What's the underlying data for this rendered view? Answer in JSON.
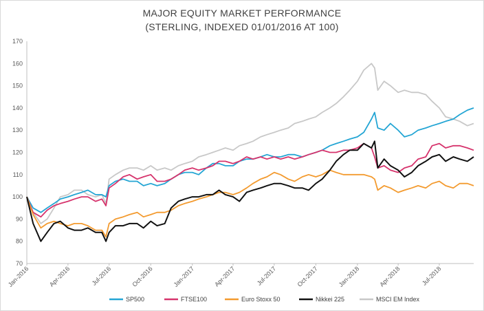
{
  "chart_data": {
    "type": "line",
    "title": "MAJOR EQUITY MARKET PERFORMANCE",
    "subtitle": "(STERLING, INDEXED 01/01/2016 AT 100)",
    "xlabel": "",
    "ylabel": "",
    "ylim": [
      70,
      170
    ],
    "yticks": [
      70,
      80,
      90,
      100,
      110,
      120,
      130,
      140,
      150,
      160,
      170
    ],
    "xlim": [
      "2016-01-01",
      "2018-09-15"
    ],
    "xticks": [
      "Jan-2016",
      "Apr-2016",
      "Jul-2016",
      "Oct-2016",
      "Jan-2017",
      "Apr-2017",
      "Jul-2017",
      "Oct-2017",
      "Jan-2018",
      "Apr-2018",
      "Jul-2018"
    ],
    "grid": false,
    "legend": "bottom",
    "x": [
      "2016-01-01",
      "2016-01-15",
      "2016-02-01",
      "2016-02-15",
      "2016-03-01",
      "2016-03-15",
      "2016-04-01",
      "2016-04-15",
      "2016-05-01",
      "2016-05-15",
      "2016-06-01",
      "2016-06-15",
      "2016-06-24",
      "2016-07-01",
      "2016-07-15",
      "2016-08-01",
      "2016-08-15",
      "2016-09-01",
      "2016-09-15",
      "2016-10-01",
      "2016-10-15",
      "2016-11-01",
      "2016-11-15",
      "2016-12-01",
      "2016-12-15",
      "2017-01-01",
      "2017-01-15",
      "2017-02-01",
      "2017-02-15",
      "2017-03-01",
      "2017-03-15",
      "2017-04-01",
      "2017-04-15",
      "2017-05-01",
      "2017-05-15",
      "2017-06-01",
      "2017-06-15",
      "2017-07-01",
      "2017-07-15",
      "2017-08-01",
      "2017-08-15",
      "2017-09-01",
      "2017-09-15",
      "2017-10-01",
      "2017-10-15",
      "2017-11-01",
      "2017-11-15",
      "2017-12-01",
      "2017-12-15",
      "2018-01-01",
      "2018-01-15",
      "2018-02-01",
      "2018-02-08",
      "2018-02-15",
      "2018-03-01",
      "2018-03-15",
      "2018-04-01",
      "2018-04-15",
      "2018-05-01",
      "2018-05-15",
      "2018-06-01",
      "2018-06-15",
      "2018-07-01",
      "2018-07-15",
      "2018-08-01",
      "2018-08-15",
      "2018-09-01",
      "2018-09-15"
    ],
    "series": [
      {
        "name": "SP500",
        "color": "#23a5d4",
        "values": [
          100,
          95,
          93,
          95,
          97,
          99,
          100,
          101,
          102,
          103,
          101,
          101,
          100,
          105,
          107,
          108,
          107,
          107,
          105,
          106,
          105,
          106,
          108,
          110,
          111,
          111,
          110,
          113,
          115,
          115,
          114,
          114,
          116,
          117,
          117,
          118,
          119,
          118,
          118,
          119,
          119,
          118,
          119,
          120,
          121,
          123,
          124,
          125,
          126,
          127,
          129,
          135,
          138,
          131,
          130,
          133,
          130,
          127,
          128,
          130,
          131,
          132,
          133,
          134,
          135,
          137,
          139,
          140
        ]
      },
      {
        "name": "FTSE100",
        "color": "#d6336c",
        "values": [
          100,
          93,
          91,
          94,
          96,
          97,
          98,
          99,
          100,
          100,
          98,
          99,
          96,
          104,
          106,
          109,
          110,
          108,
          109,
          110,
          107,
          107,
          108,
          110,
          112,
          113,
          112,
          113,
          114,
          116,
          116,
          115,
          116,
          118,
          117,
          118,
          117,
          118,
          117,
          118,
          117,
          118,
          119,
          120,
          121,
          120,
          120,
          121,
          121,
          122,
          124,
          122,
          118,
          113,
          114,
          112,
          111,
          113,
          114,
          117,
          118,
          123,
          124,
          122,
          123,
          123,
          122,
          121
        ]
      },
      {
        "name": "Euro Stoxx 50",
        "color": "#f39a2e",
        "values": [
          100,
          92,
          86,
          88,
          89,
          88,
          87,
          88,
          88,
          87,
          85,
          85,
          82,
          88,
          90,
          91,
          92,
          93,
          91,
          92,
          93,
          93,
          94,
          96,
          97,
          98,
          99,
          100,
          101,
          102,
          102,
          101,
          102,
          104,
          106,
          108,
          109,
          111,
          110,
          108,
          107,
          109,
          110,
          109,
          110,
          112,
          111,
          110,
          110,
          110,
          110,
          109,
          108,
          103,
          105,
          104,
          102,
          103,
          104,
          105,
          104,
          106,
          107,
          105,
          104,
          106,
          106,
          105
        ]
      },
      {
        "name": "Nikkei 225",
        "color": "#111111",
        "values": [
          100,
          88,
          80,
          84,
          88,
          89,
          86,
          85,
          85,
          86,
          84,
          84,
          80,
          84,
          87,
          87,
          88,
          88,
          86,
          89,
          87,
          88,
          95,
          98,
          99,
          100,
          100,
          101,
          101,
          103,
          101,
          100,
          98,
          102,
          103,
          104,
          105,
          106,
          106,
          105,
          104,
          104,
          103,
          106,
          108,
          112,
          116,
          119,
          121,
          121,
          124,
          122,
          125,
          113,
          117,
          114,
          112,
          109,
          111,
          114,
          116,
          118,
          119,
          116,
          118,
          117,
          116,
          118
        ]
      },
      {
        "name": "MSCI EM Index",
        "color": "#c8c8c8",
        "values": [
          100,
          93,
          88,
          90,
          95,
          100,
          101,
          103,
          103,
          101,
          100,
          101,
          97,
          108,
          110,
          112,
          113,
          113,
          112,
          114,
          112,
          113,
          112,
          114,
          115,
          116,
          118,
          119,
          120,
          121,
          122,
          121,
          123,
          124,
          125,
          127,
          128,
          129,
          130,
          131,
          133,
          134,
          135,
          136,
          138,
          140,
          142,
          145,
          148,
          152,
          157,
          160,
          158,
          148,
          152,
          150,
          147,
          148,
          147,
          147,
          146,
          143,
          140,
          136,
          135,
          134,
          132,
          133
        ]
      }
    ]
  }
}
